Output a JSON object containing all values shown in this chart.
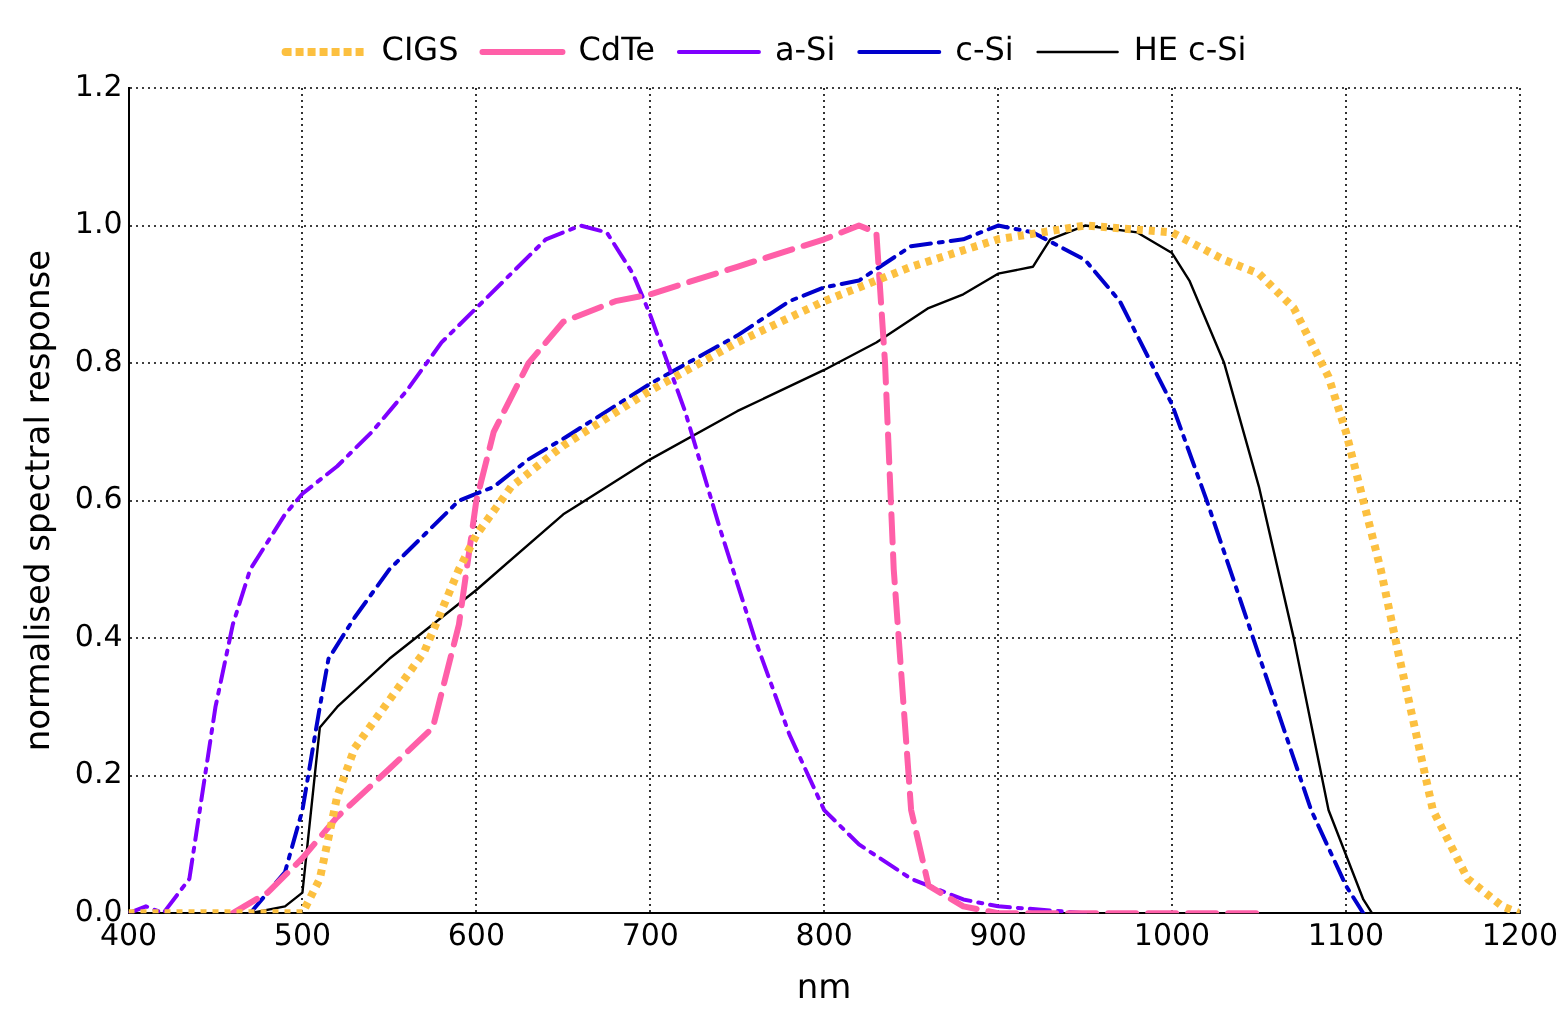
{
  "chart_data": {
    "type": "line",
    "xlabel": "nm",
    "ylabel": "normalised spectral response",
    "xlim": [
      400,
      1200
    ],
    "xticks": [
      400,
      500,
      600,
      700,
      800,
      900,
      1000,
      1100,
      1200
    ],
    "ylim": [
      0,
      1.2
    ],
    "yticks": [
      {
        "value": 0,
        "label": "0.0"
      },
      0.2,
      0.4,
      0.6,
      0.8,
      {
        "value": 1,
        "label": "1.0"
      },
      1.2
    ],
    "grid": true,
    "legend": "top",
    "marker": "none",
    "series": [
      {
        "name": "CIGS",
        "color": "#fcc040",
        "line_style": "dotted",
        "x": [
          400,
          450,
          500,
          510,
          520,
          530,
          550,
          570,
          590,
          600,
          620,
          650,
          700,
          750,
          800,
          850,
          900,
          950,
          1000,
          1030,
          1050,
          1070,
          1090,
          1100,
          1120,
          1130,
          1150,
          1170,
          1190,
          1200
        ],
        "values": [
          0,
          0,
          0,
          0.05,
          0.17,
          0.24,
          0.31,
          0.38,
          0.5,
          0.55,
          0.62,
          0.68,
          0.76,
          0.83,
          0.89,
          0.94,
          0.98,
          1.0,
          0.99,
          0.95,
          0.93,
          0.88,
          0.78,
          0.7,
          0.5,
          0.38,
          0.15,
          0.05,
          0.01,
          0
        ]
      },
      {
        "name": "CdTe",
        "color": "#ff5fa8",
        "line_style": "dashed",
        "x": [
          460,
          480,
          500,
          520,
          550,
          575,
          590,
          600,
          610,
          630,
          650,
          680,
          700,
          750,
          800,
          820,
          830,
          835,
          840,
          850,
          860,
          880,
          900,
          1050
        ],
        "values": [
          0,
          0.03,
          0.08,
          0.14,
          0.21,
          0.27,
          0.42,
          0.6,
          0.7,
          0.8,
          0.86,
          0.89,
          0.9,
          0.94,
          0.98,
          1.0,
          0.99,
          0.8,
          0.5,
          0.15,
          0.04,
          0.01,
          0,
          0
        ]
      },
      {
        "name": "a-Si",
        "color": "#7f00ff",
        "line_style": "dashdot",
        "x": [
          400,
          410,
          420,
          435,
          450,
          460,
          470,
          490,
          500,
          520,
          540,
          560,
          580,
          600,
          620,
          640,
          660,
          675,
          690,
          700,
          720,
          740,
          760,
          780,
          800,
          820,
          850,
          880,
          900,
          950
        ],
        "values": [
          0,
          0.01,
          0,
          0.05,
          0.3,
          0.42,
          0.5,
          0.58,
          0.61,
          0.65,
          0.7,
          0.76,
          0.83,
          0.88,
          0.93,
          0.98,
          1.0,
          0.99,
          0.93,
          0.87,
          0.73,
          0.56,
          0.4,
          0.26,
          0.15,
          0.1,
          0.05,
          0.02,
          0.01,
          0
        ]
      },
      {
        "name": "c-Si",
        "color": "#0000cc",
        "line_style": "dashdot",
        "x": [
          470,
          490,
          500,
          510,
          515,
          530,
          550,
          570,
          590,
          610,
          630,
          650,
          700,
          750,
          780,
          800,
          820,
          850,
          880,
          900,
          920,
          950,
          970,
          1000,
          1020,
          1040,
          1060,
          1080,
          1100,
          1110
        ],
        "values": [
          0,
          0.06,
          0.15,
          0.3,
          0.37,
          0.43,
          0.5,
          0.55,
          0.6,
          0.62,
          0.66,
          0.69,
          0.77,
          0.84,
          0.89,
          0.91,
          0.92,
          0.97,
          0.98,
          1.0,
          0.99,
          0.95,
          0.89,
          0.74,
          0.6,
          0.45,
          0.3,
          0.15,
          0.04,
          0
        ]
      },
      {
        "name": "HE c-Si",
        "color": "#000000",
        "line_style": "solid",
        "x": [
          470,
          490,
          500,
          510,
          520,
          550,
          570,
          600,
          650,
          700,
          750,
          800,
          830,
          860,
          880,
          900,
          920,
          930,
          950,
          980,
          1000,
          1010,
          1030,
          1050,
          1070,
          1090,
          1110,
          1115
        ],
        "values": [
          0,
          0.01,
          0.03,
          0.27,
          0.3,
          0.37,
          0.41,
          0.47,
          0.58,
          0.66,
          0.73,
          0.79,
          0.83,
          0.88,
          0.9,
          0.93,
          0.94,
          0.98,
          1.0,
          0.99,
          0.96,
          0.92,
          0.8,
          0.62,
          0.4,
          0.15,
          0.02,
          0
        ]
      }
    ]
  }
}
